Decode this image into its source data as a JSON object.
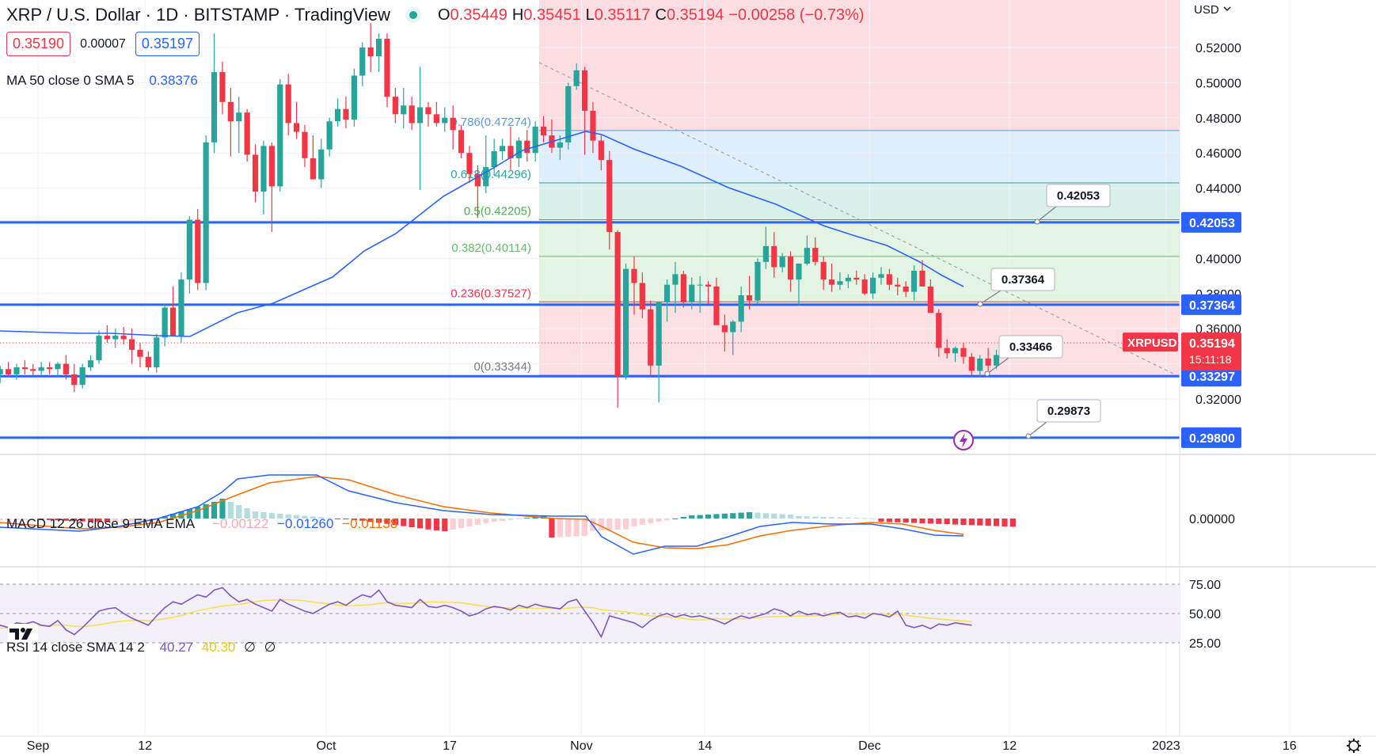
{
  "header": {
    "symbol": "XRP / U.S. Dollar · 1D · BITSTAMP · TradingView",
    "o_label": "O",
    "o_value": "0.35449",
    "h_label": "H",
    "h_value": "0.35451",
    "l_label": "L",
    "l_value": "0.35117",
    "c_label": "C",
    "c_value": "0.35194",
    "change": "−0.00258 (−0.73%)"
  },
  "trade": {
    "sell_price": "0.35190",
    "spread": "0.00007",
    "buy_price": "0.35197"
  },
  "indicators": {
    "ma_label": "MA 50 close 0 SMA 5",
    "ma_value": "0.38376",
    "macd_label": "MACD 12 26 close 9 EMA EMA",
    "macd_hist": "−0.00122",
    "macd_line": "−0.01260",
    "macd_signal": "−0.01138",
    "rsi_label": "RSI 14 close SMA 14 2",
    "rsi_value": "40.27",
    "rsi_ma": "40.30",
    "rsi_extra1": "∅",
    "rsi_extra2": "∅"
  },
  "currency": "USD",
  "colors": {
    "up": "#26a69a",
    "down": "#f23645",
    "line_blue": "#2962ff",
    "ma": "#2962ff",
    "signal": "#ff6d00",
    "rsi_ma": "#f7e05a",
    "rsi": "#7e57c2"
  },
  "icons": [
    "tradingview-logo-icon",
    "lightning-icon",
    "settings-gear-icon",
    "chevron-down-icon"
  ],
  "chart_data": {
    "type": "candlestick",
    "currency": "USD",
    "y_ticks": [
      "0.52000",
      "0.50000",
      "0.48000",
      "0.46000",
      "0.44000",
      "0.42000",
      "0.40000",
      "0.38000",
      "0.36000",
      "0.34000",
      "0.32000"
    ],
    "ylim": [
      0.3,
      0.535
    ],
    "x_ticks": [
      "Sep",
      "12",
      "Oct",
      "17",
      "Nov",
      "14",
      "Dec",
      "12",
      "2023",
      "16"
    ],
    "x_tick_days": [
      0,
      13,
      35,
      50,
      66,
      81,
      101,
      118,
      137,
      152
    ],
    "candles_ohlc": [
      [
        0.339,
        0.342,
        0.33,
        0.334
      ],
      [
        0.334,
        0.339,
        0.329,
        0.337
      ],
      [
        0.337,
        0.341,
        0.333,
        0.334
      ],
      [
        0.334,
        0.34,
        0.331,
        0.338
      ],
      [
        0.338,
        0.342,
        0.334,
        0.337
      ],
      [
        0.337,
        0.34,
        0.333,
        0.336
      ],
      [
        0.336,
        0.341,
        0.333,
        0.338
      ],
      [
        0.338,
        0.341,
        0.334,
        0.337
      ],
      [
        0.337,
        0.341,
        0.333,
        0.34
      ],
      [
        0.34,
        0.345,
        0.331,
        0.334
      ],
      [
        0.334,
        0.34,
        0.324,
        0.328
      ],
      [
        0.328,
        0.34,
        0.326,
        0.338
      ],
      [
        0.338,
        0.345,
        0.336,
        0.342
      ],
      [
        0.342,
        0.359,
        0.34,
        0.356
      ],
      [
        0.356,
        0.362,
        0.352,
        0.354
      ],
      [
        0.354,
        0.36,
        0.349,
        0.356
      ],
      [
        0.356,
        0.361,
        0.351,
        0.354
      ],
      [
        0.354,
        0.36,
        0.34,
        0.348
      ],
      [
        0.348,
        0.352,
        0.338,
        0.344
      ],
      [
        0.344,
        0.347,
        0.336,
        0.338
      ],
      [
        0.338,
        0.357,
        0.335,
        0.355
      ],
      [
        0.355,
        0.374,
        0.35,
        0.372
      ],
      [
        0.372,
        0.384,
        0.356,
        0.356
      ],
      [
        0.356,
        0.392,
        0.352,
        0.388
      ],
      [
        0.388,
        0.424,
        0.38,
        0.422
      ],
      [
        0.422,
        0.428,
        0.382,
        0.386
      ],
      [
        0.386,
        0.47,
        0.382,
        0.466
      ],
      [
        0.466,
        0.528,
        0.46,
        0.506
      ],
      [
        0.506,
        0.512,
        0.482,
        0.489
      ],
      [
        0.489,
        0.497,
        0.458,
        0.478
      ],
      [
        0.478,
        0.492,
        0.46,
        0.483
      ],
      [
        0.483,
        0.485,
        0.455,
        0.459
      ],
      [
        0.459,
        0.465,
        0.432,
        0.438
      ],
      [
        0.438,
        0.467,
        0.425,
        0.464
      ],
      [
        0.464,
        0.466,
        0.415,
        0.441
      ],
      [
        0.441,
        0.502,
        0.438,
        0.499
      ],
      [
        0.499,
        0.505,
        0.47,
        0.477
      ],
      [
        0.477,
        0.489,
        0.468,
        0.472
      ],
      [
        0.472,
        0.476,
        0.452,
        0.457
      ],
      [
        0.457,
        0.47,
        0.445,
        0.445
      ],
      [
        0.445,
        0.468,
        0.44,
        0.462
      ],
      [
        0.462,
        0.48,
        0.458,
        0.478
      ],
      [
        0.478,
        0.491,
        0.475,
        0.485
      ],
      [
        0.485,
        0.492,
        0.474,
        0.479
      ],
      [
        0.479,
        0.508,
        0.475,
        0.504
      ],
      [
        0.504,
        0.523,
        0.498,
        0.52
      ],
      [
        0.52,
        0.534,
        0.506,
        0.515
      ],
      [
        0.515,
        0.528,
        0.506,
        0.525
      ],
      [
        0.525,
        0.528,
        0.486,
        0.492
      ],
      [
        0.492,
        0.497,
        0.477,
        0.482
      ],
      [
        0.482,
        0.497,
        0.474,
        0.487
      ],
      [
        0.487,
        0.492,
        0.473,
        0.477
      ],
      [
        0.477,
        0.509,
        0.439,
        0.486
      ],
      [
        0.486,
        0.489,
        0.475,
        0.482
      ],
      [
        0.482,
        0.489,
        0.475,
        0.477
      ],
      [
        0.477,
        0.486,
        0.472,
        0.48
      ],
      [
        0.48,
        0.487,
        0.462,
        0.473
      ],
      [
        0.473,
        0.476,
        0.457,
        0.46
      ],
      [
        0.46,
        0.464,
        0.443,
        0.448
      ],
      [
        0.448,
        0.453,
        0.423,
        0.441
      ],
      [
        0.441,
        0.47,
        0.437,
        0.452
      ],
      [
        0.452,
        0.468,
        0.447,
        0.461
      ],
      [
        0.461,
        0.468,
        0.456,
        0.464
      ],
      [
        0.464,
        0.475,
        0.45,
        0.457
      ],
      [
        0.457,
        0.469,
        0.452,
        0.467
      ],
      [
        0.467,
        0.473,
        0.455,
        0.46
      ],
      [
        0.46,
        0.478,
        0.455,
        0.475
      ],
      [
        0.475,
        0.481,
        0.466,
        0.47
      ],
      [
        0.47,
        0.479,
        0.46,
        0.463
      ]
    ],
    "fibonacci": [
      {
        "label": "0.786(0.47274)",
        "value": 0.47274
      },
      {
        "label": "0.618(0.44296)",
        "value": 0.44296
      },
      {
        "label": "0.5(0.42205)",
        "value": 0.42205
      },
      {
        "label": "0.382(0.40114)",
        "value": 0.40114
      },
      {
        "label": "0.236(0.37527)",
        "value": 0.37527
      },
      {
        "label": "0(0.33344)",
        "value": 0.33344
      }
    ],
    "horizontal_levels": [
      "0.42053",
      "0.37364",
      "0.33297",
      "0.29800"
    ],
    "callouts": [
      "0.42053",
      "0.37364",
      "0.33466",
      "0.29873"
    ],
    "last_price": {
      "label": "XRPUSD",
      "value": "0.35194",
      "countdown": "15:11:18"
    },
    "macd_ticks": [
      "0.00000"
    ],
    "rsi_ticks": [
      "75.00",
      "50.00",
      "25.00"
    ]
  }
}
